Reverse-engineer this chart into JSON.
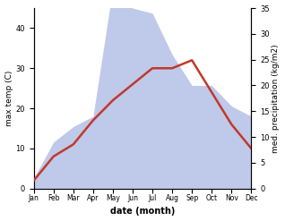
{
  "months": [
    "Jan",
    "Feb",
    "Mar",
    "Apr",
    "May",
    "Jun",
    "Jul",
    "Aug",
    "Sep",
    "Oct",
    "Nov",
    "Dec"
  ],
  "month_indices": [
    0,
    1,
    2,
    3,
    4,
    5,
    6,
    7,
    8,
    9,
    10,
    11
  ],
  "temperature": [
    2,
    8,
    11,
    17,
    22,
    26,
    30,
    30,
    32,
    24,
    16,
    10
  ],
  "precipitation": [
    2,
    9,
    12,
    14,
    39,
    35,
    34,
    26,
    20,
    20,
    16,
    14
  ],
  "temp_color": "#c0392b",
  "precip_fill_color": "#b8c4e8",
  "temp_ylim": [
    0,
    45
  ],
  "precip_ylim": [
    0,
    35
  ],
  "temp_yticks": [
    0,
    10,
    20,
    30,
    40
  ],
  "precip_yticks": [
    0,
    5,
    10,
    15,
    20,
    25,
    30,
    35
  ],
  "xlabel": "date (month)",
  "ylabel_left": "max temp (C)",
  "ylabel_right": "med. precipitation (kg/m2)",
  "background_color": "#ffffff"
}
